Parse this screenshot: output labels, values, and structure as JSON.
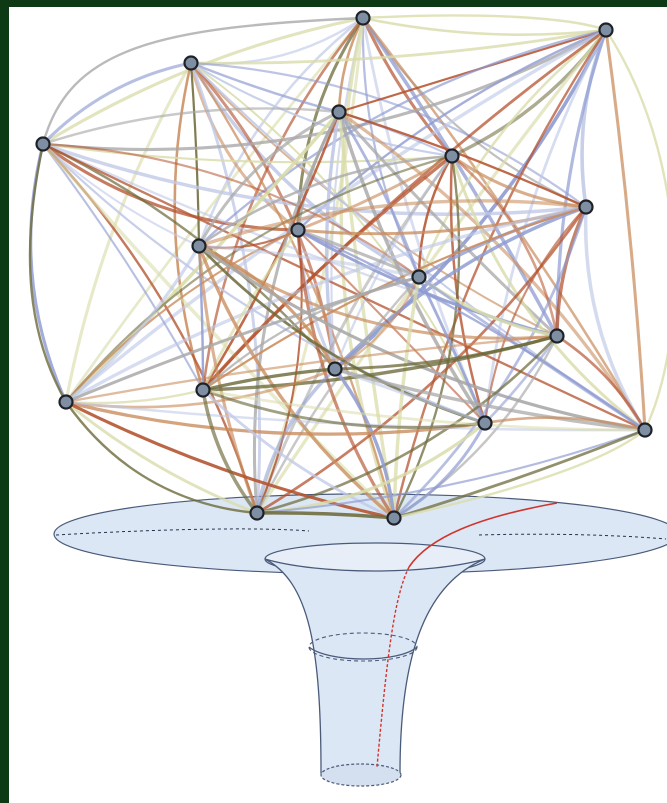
{
  "figure": {
    "graph": {
      "node_count": 18,
      "node_fill": "#7f8fa3",
      "node_stroke": "#1e2228",
      "edge_palette": [
        "#b4532f",
        "#c98c5c",
        "#8f9bd1",
        "#d9dcaa",
        "#6d6a3a",
        "#a9a9a9",
        "#bfc8e6"
      ]
    },
    "funnel": {
      "surface_fill": "#dce7f5",
      "outline": "#4a5a7a",
      "path_color": "#d0342c"
    }
  }
}
